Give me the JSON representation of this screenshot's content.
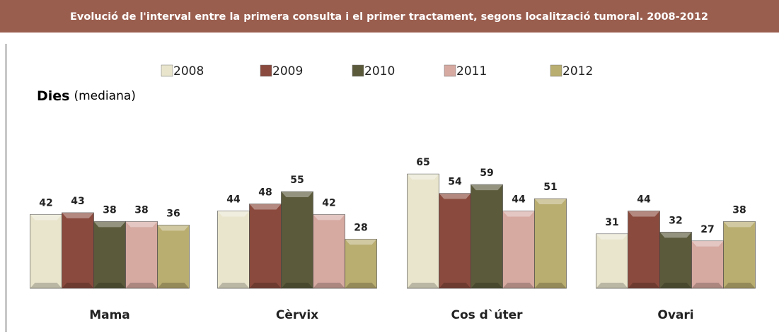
{
  "chart_data": {
    "type": "bar",
    "title": "Evolució de l'interval entre la primera consulta  i el primer tractament, segons localització tumoral. 2008-2012",
    "ylabel": "Dies",
    "ylabel_note": "(mediana)",
    "categories": [
      "Mama",
      "Cèrvix",
      "Cos d`úter",
      "Ovari"
    ],
    "series": [
      {
        "name": "2008",
        "color": "#e9e5cd",
        "values": [
          42,
          44,
          65,
          31
        ]
      },
      {
        "name": "2009",
        "color": "#8a4a3d",
        "values": [
          43,
          48,
          54,
          44
        ]
      },
      {
        "name": "2010",
        "color": "#5b5a3b",
        "values": [
          38,
          55,
          59,
          32
        ]
      },
      {
        "name": "2011",
        "color": "#d6a9a1",
        "values": [
          38,
          42,
          44,
          27
        ]
      },
      {
        "name": "2012",
        "color": "#b9ad70",
        "values": [
          36,
          28,
          51,
          38
        ]
      }
    ]
  }
}
